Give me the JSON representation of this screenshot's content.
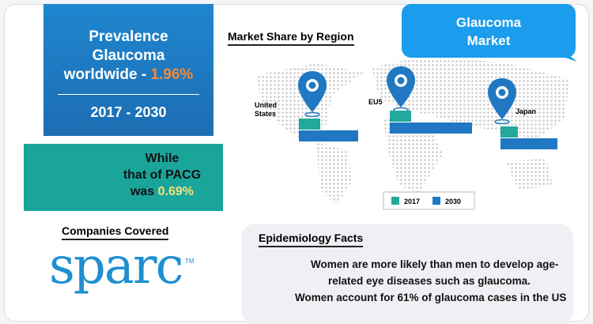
{
  "header": {
    "title_lines": [
      "Prevalence",
      "Glaucoma",
      "worldwide - "
    ],
    "highlight": "1.96%",
    "period": "2017 - 2030"
  },
  "pacg": {
    "lines": [
      "While",
      "that of PACG",
      "was "
    ],
    "highlight": "0.69%"
  },
  "companies": {
    "heading": "Companies Covered",
    "logo": "sparc",
    "logo_mark": "TM"
  },
  "bubble": {
    "lines": [
      "Glaucoma",
      "Market"
    ]
  },
  "epidemiology": {
    "heading": "Epidemiology Facts",
    "lines": [
      "Women are more likely than men to develop age-",
      "related eye diseases such as glaucoma.",
      "Women account for 61% of glaucoma cases in the US"
    ]
  },
  "chart_data": {
    "type": "bar",
    "title": "Market Share by Region",
    "categories": [
      "United States",
      "EU5",
      "Japan"
    ],
    "series": [
      {
        "name": "2017",
        "color": "#22a99b",
        "values": [
          27,
          27,
          22
        ]
      },
      {
        "name": "2030",
        "color": "#1f78c1",
        "values": [
          75,
          104,
          72
        ]
      }
    ]
  }
}
